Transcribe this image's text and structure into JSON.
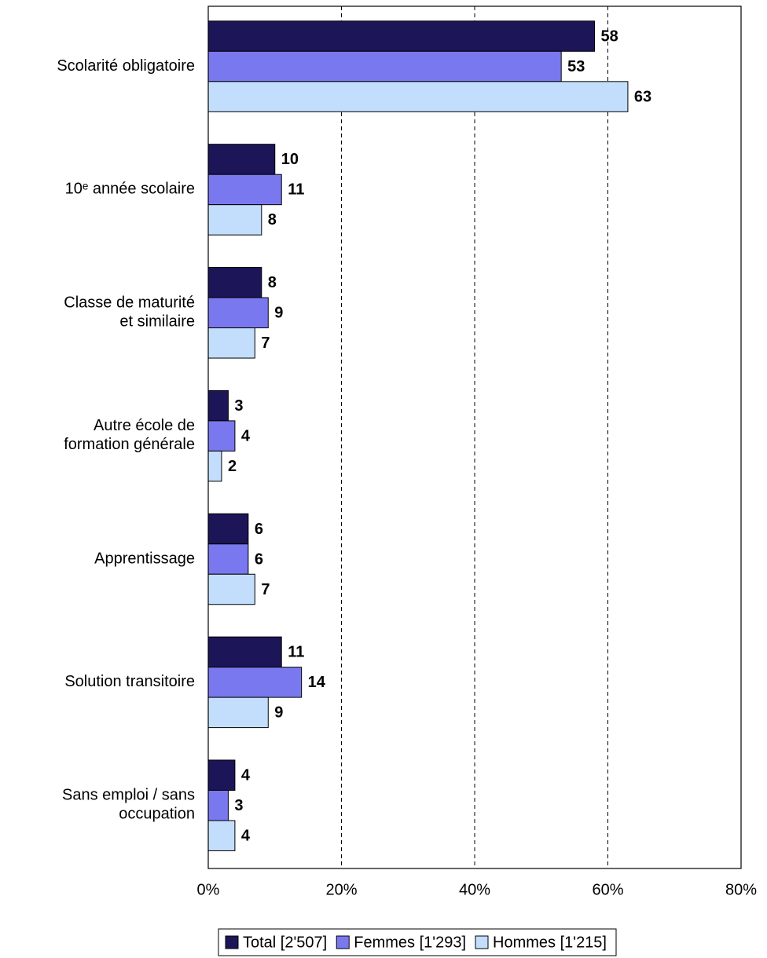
{
  "chart_data": {
    "type": "bar",
    "orientation": "horizontal",
    "categories": [
      "Scolarité obligatoire",
      "10ᵉ année scolaire",
      "Classe de maturité\net similaire",
      "Autre école de\nformation générale",
      "Apprentissage",
      "Solution transitoire",
      "Sans emploi / sans\noccupation"
    ],
    "series": [
      {
        "name": "Total [2'507]",
        "color": "#1c1557",
        "values": [
          58,
          10,
          8,
          3,
          6,
          11,
          4
        ]
      },
      {
        "name": "Femmes [1'293]",
        "color": "#7a78ee",
        "values": [
          53,
          11,
          9,
          4,
          6,
          14,
          3
        ]
      },
      {
        "name": "Hommes [1'215]",
        "color": "#c2defc",
        "values": [
          63,
          8,
          7,
          2,
          7,
          9,
          4
        ]
      }
    ],
    "xlim": [
      0,
      80
    ],
    "xticks": [
      {
        "value": 0,
        "label": "0%"
      },
      {
        "value": 20,
        "label": "20%"
      },
      {
        "value": 40,
        "label": "40%"
      },
      {
        "value": 60,
        "label": "60%"
      },
      {
        "value": 80,
        "label": "80%"
      }
    ],
    "grid": true,
    "legend": "bottom"
  }
}
